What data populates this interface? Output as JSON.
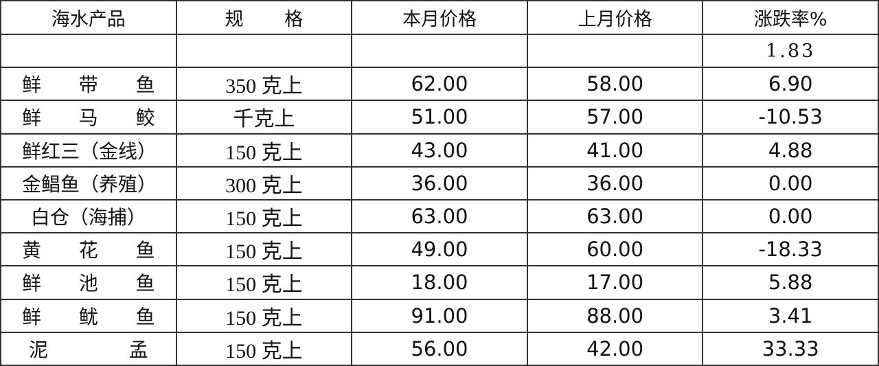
{
  "headers": [
    "海水产品",
    "规格",
    "本月价格",
    "上月价格",
    "涨跌率%"
  ],
  "summary": {
    "change": "1.83"
  },
  "rows": [
    {
      "name": "鲜带鱼",
      "spec": "350 克上",
      "current": "62.00",
      "previous": "58.00",
      "change": "6.90",
      "just": true
    },
    {
      "name": "鲜马鲛",
      "spec": "千克上",
      "current": "51.00",
      "previous": "57.00",
      "change": "-10.53",
      "just": true
    },
    {
      "name": "鲜红三（金线）",
      "spec": "150 克上",
      "current": "43.00",
      "previous": "41.00",
      "change": "4.88",
      "just": false
    },
    {
      "name": "金鲳鱼（养殖）",
      "spec": "300 克上",
      "current": "36.00",
      "previous": "36.00",
      "change": "0.00",
      "just": false
    },
    {
      "name": "白仓（海捕）",
      "spec": "150 克上",
      "current": "63.00",
      "previous": "63.00",
      "change": "0.00",
      "just": false
    },
    {
      "name": "黄花鱼",
      "spec": "150 克上",
      "current": "49.00",
      "previous": "60.00",
      "change": "-18.33",
      "just": true
    },
    {
      "name": "鲜池鱼",
      "spec": "150 克上",
      "current": "18.00",
      "previous": "17.00",
      "change": "5.88",
      "just": true
    },
    {
      "name": "鲜鱿鱼",
      "spec": "150 克上",
      "current": "91.00",
      "previous": "88.00",
      "change": "3.41",
      "just": true
    },
    {
      "name": "泥孟",
      "spec": "150 克上",
      "current": "56.00",
      "previous": "42.00",
      "change": "33.33",
      "just": true
    }
  ]
}
